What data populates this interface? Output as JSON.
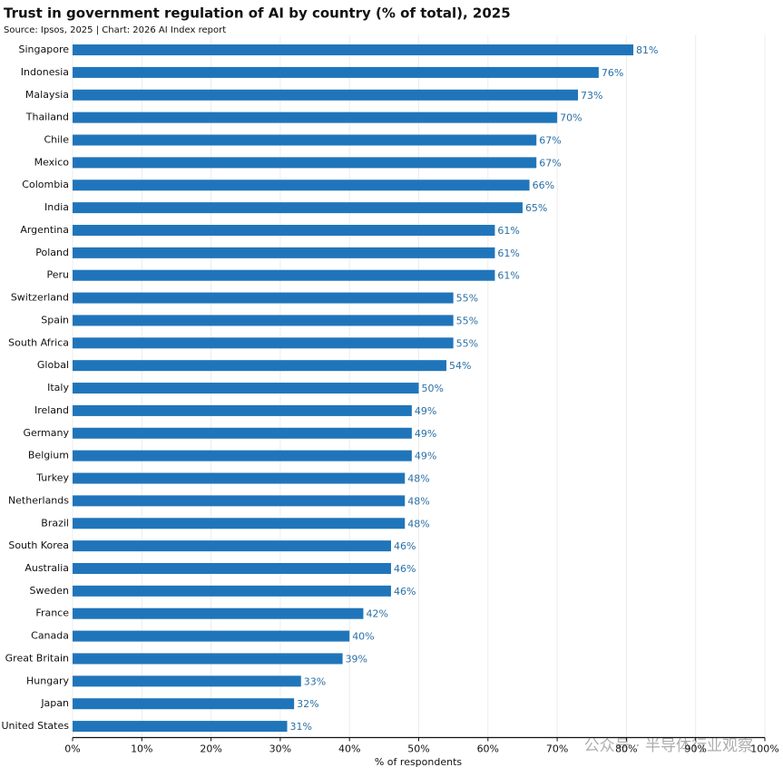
{
  "chart_data": {
    "type": "bar",
    "orientation": "horizontal",
    "title": "Trust in government regulation of AI by country (% of total), 2025",
    "subtitle": "Source: Ipsos, 2025 | Chart: 2026 AI Index report",
    "categories": [
      "Singapore",
      "Indonesia",
      "Malaysia",
      "Thailand",
      "Chile",
      "Mexico",
      "Colombia",
      "India",
      "Argentina",
      "Poland",
      "Peru",
      "Switzerland",
      "Spain",
      "South Africa",
      "Global",
      "Italy",
      "Ireland",
      "Germany",
      "Belgium",
      "Turkey",
      "Netherlands",
      "Brazil",
      "South Korea",
      "Australia",
      "Sweden",
      "France",
      "Canada",
      "Great Britain",
      "Hungary",
      "Japan",
      "United States"
    ],
    "values": [
      81,
      76,
      73,
      70,
      67,
      67,
      66,
      65,
      61,
      61,
      61,
      55,
      55,
      55,
      54,
      50,
      49,
      49,
      49,
      48,
      48,
      48,
      46,
      46,
      46,
      42,
      40,
      39,
      33,
      32,
      31
    ],
    "value_labels": [
      "81%",
      "76%",
      "73%",
      "70%",
      "67%",
      "67%",
      "66%",
      "65%",
      "61%",
      "61%",
      "61%",
      "55%",
      "55%",
      "55%",
      "54%",
      "50%",
      "49%",
      "49%",
      "49%",
      "48%",
      "48%",
      "48%",
      "46%",
      "46%",
      "46%",
      "42%",
      "40%",
      "39%",
      "33%",
      "32%",
      "31%"
    ],
    "color": "#2075ba",
    "label_color": "#2a6fa5",
    "xlabel": "% of respondents",
    "xlim": [
      0,
      100
    ],
    "xticks": [
      {
        "value": 0,
        "label": "0%"
      },
      {
        "value": 10,
        "label": "10%"
      },
      {
        "value": 20,
        "label": "20%"
      },
      {
        "value": 30,
        "label": "30%"
      },
      {
        "value": 40,
        "label": "40%"
      },
      {
        "value": 50,
        "label": "50%"
      },
      {
        "value": 60,
        "label": "60%"
      },
      {
        "value": 70,
        "label": "70%"
      },
      {
        "value": 80,
        "label": "80%"
      },
      {
        "value": 90,
        "label": "90%"
      },
      {
        "value": 100,
        "label": "100%"
      }
    ],
    "grid": true,
    "annotation": "公众号 · 半导体行业观察"
  }
}
